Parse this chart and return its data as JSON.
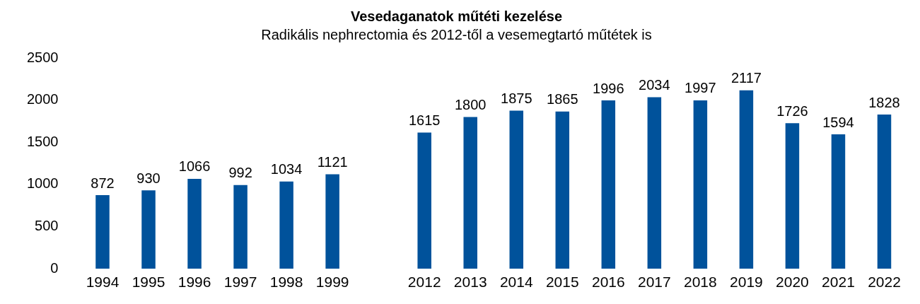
{
  "chart_data": {
    "type": "bar",
    "title": "Vesedaganatok műtéti kezelése",
    "subtitle": "Radikális nephrectomia és 2012-től a vesemegtartó műtétek is",
    "categories": [
      "1994",
      "1995",
      "1996",
      "1997",
      "1998",
      "1999",
      null,
      "2012",
      "2013",
      "2014",
      "2015",
      "2016",
      "2017",
      "2018",
      "2019",
      "2020",
      "2021",
      "2022"
    ],
    "values": [
      872,
      930,
      1066,
      992,
      1034,
      1121,
      null,
      1615,
      1800,
      1875,
      1865,
      1996,
      2034,
      1997,
      2117,
      1726,
      1594,
      1828
    ],
    "color": "#00529b",
    "ylim": [
      0,
      2500
    ],
    "yticks": [
      0,
      500,
      1000,
      1500,
      2000,
      2500
    ],
    "grid": false,
    "legend": false,
    "data_labels": true
  }
}
